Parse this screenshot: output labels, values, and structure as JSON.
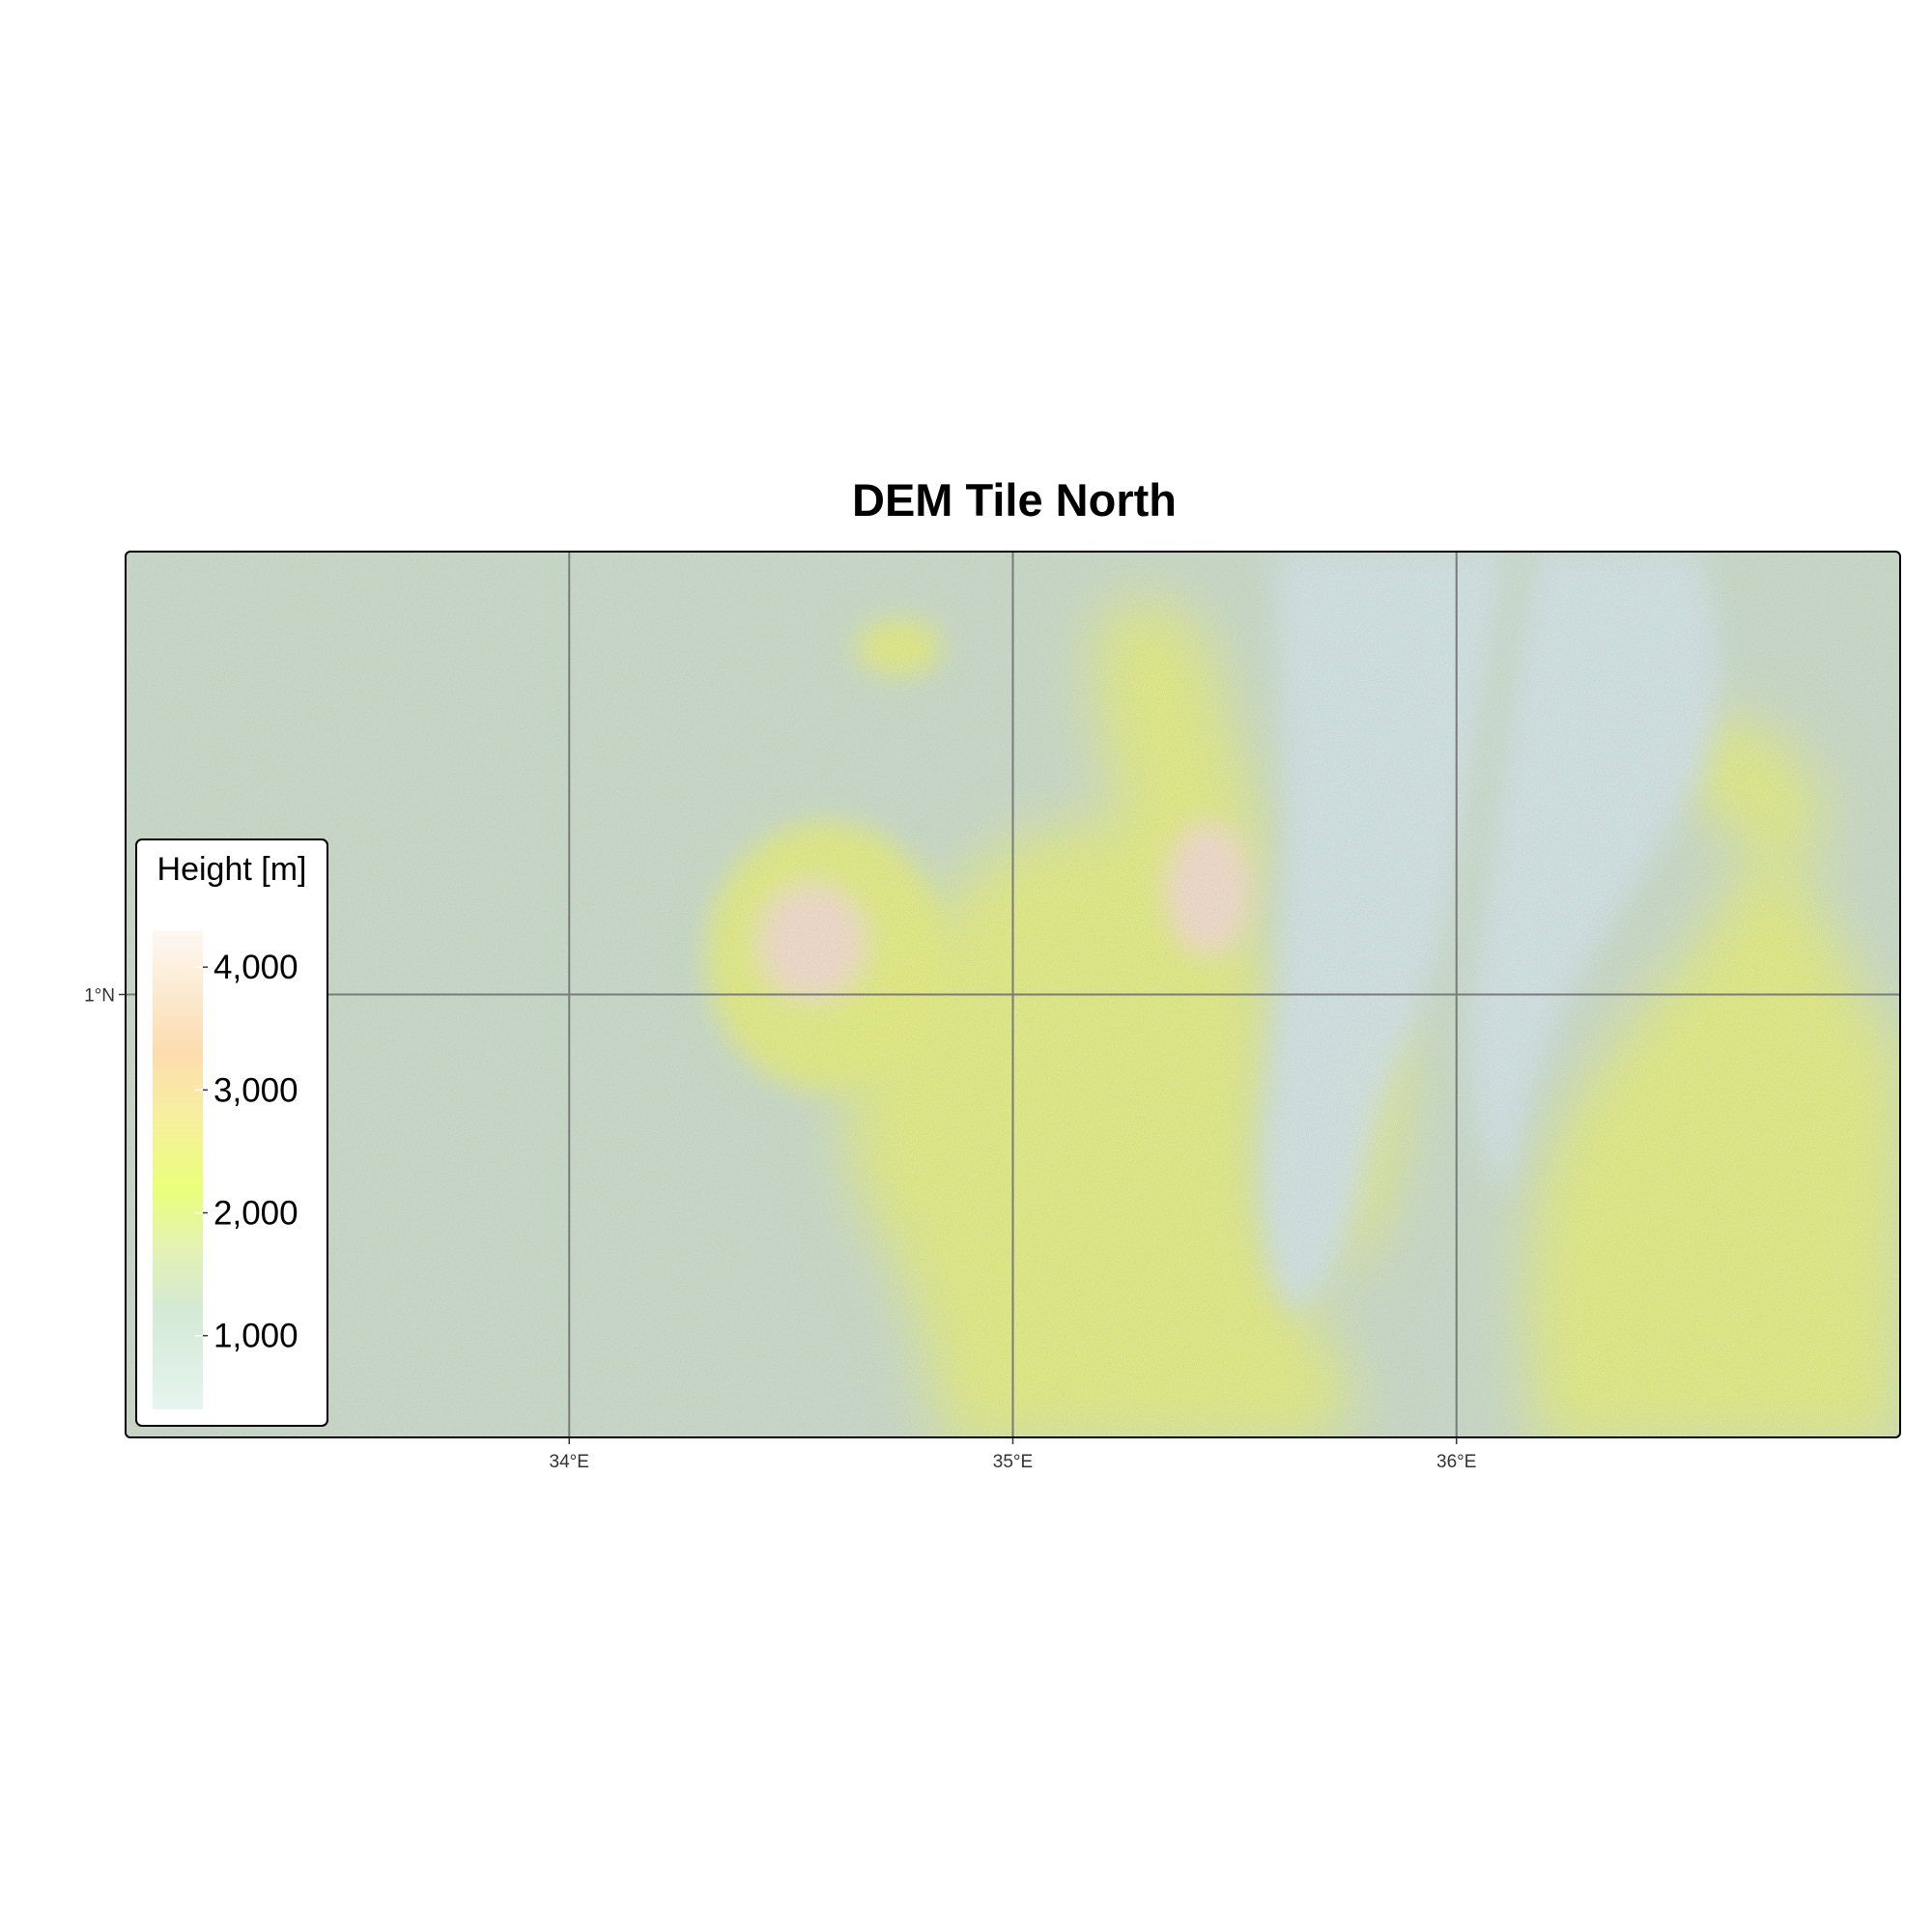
{
  "title": "DEM Tile North",
  "map": {
    "type": "raster-dem-hillshade",
    "extent": {
      "lon": [
        33.0,
        37.0
      ],
      "lat": [
        0.0,
        2.0
      ]
    },
    "grid_lines": true,
    "x_ticks": [
      {
        "value": 34,
        "label": "34°E"
      },
      {
        "value": 35,
        "label": "35°E"
      },
      {
        "value": 36,
        "label": "36°E"
      }
    ],
    "y_ticks": [
      {
        "value": 1,
        "label": "1°N"
      }
    ]
  },
  "legend": {
    "title": "Height [m]",
    "placement": "bottom-left inside",
    "range": [
      400,
      4300
    ],
    "ticks": [
      {
        "value": 1000,
        "label": "1,000"
      },
      {
        "value": 2000,
        "label": "2,000"
      },
      {
        "value": 3000,
        "label": "3,000"
      },
      {
        "value": 4000,
        "label": "4,000"
      }
    ],
    "color_stops": [
      {
        "value": 400,
        "color": "#e6f5f0"
      },
      {
        "value": 1200,
        "color": "#d4e9d6"
      },
      {
        "value": 1700,
        "color": "#e3f2b4"
      },
      {
        "value": 2200,
        "color": "#eaff7a"
      },
      {
        "value": 2800,
        "color": "#f8eea0"
      },
      {
        "value": 3300,
        "color": "#fcdcae"
      },
      {
        "value": 4300,
        "color": "#fdf8f3"
      }
    ]
  },
  "terrain": {
    "base_color": "#c9d9c8",
    "lake_color": "#d2e2e4",
    "highland_color": "#e3ec7d",
    "peak_color": "#f1d9cd"
  }
}
